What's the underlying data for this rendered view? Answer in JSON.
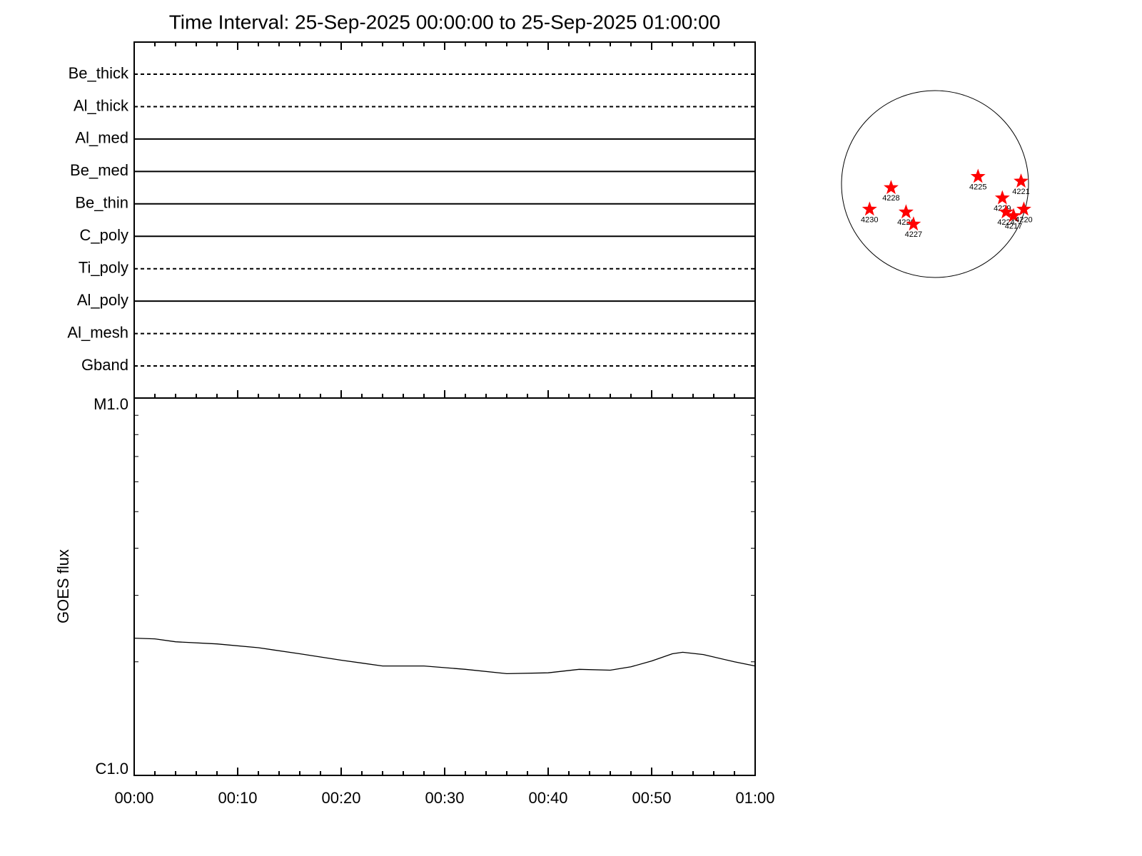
{
  "chart_data": [
    {
      "type": "timeline",
      "title": "Time Interval: 25-Sep-2025 00:00:00 to 25-Sep-2025 01:00:00",
      "categories": [
        "Be_thick",
        "Al_thick",
        "Al_med",
        "Be_med",
        "Be_thin",
        "C_poly",
        "Ti_poly",
        "Al_poly",
        "Al_mesh",
        "Gband"
      ],
      "styles": [
        "dashed",
        "dashed",
        "solid",
        "solid",
        "solid",
        "solid",
        "dashed",
        "solid",
        "dashed",
        "dashed"
      ],
      "xlim": [
        "00:00",
        "01:00"
      ],
      "xticks": [
        "00:00",
        "00:10",
        "00:20",
        "00:30",
        "00:40",
        "00:50",
        "01:00"
      ]
    },
    {
      "type": "line",
      "ylabel": "GOES flux",
      "log_scale": true,
      "color": "#000000",
      "x": [
        "00:00",
        "00:02",
        "00:04",
        "00:08",
        "00:12",
        "00:16",
        "00:20",
        "00:24",
        "00:28",
        "00:32",
        "00:36",
        "00:40",
        "00:43",
        "00:46",
        "00:48",
        "00:50",
        "00:52",
        "00:53",
        "00:55",
        "00:58",
        "01:00"
      ],
      "values": [
        2.31e-06,
        2.3e-06,
        2.26e-06,
        2.23e-06,
        2.18e-06,
        2.1e-06,
        2.02e-06,
        1.95e-06,
        1.95e-06,
        1.91e-06,
        1.86e-06,
        1.87e-06,
        1.91e-06,
        1.9e-06,
        1.94e-06,
        2.01e-06,
        2.1e-06,
        2.12e-06,
        2.09e-06,
        2e-06,
        1.95e-06
      ],
      "xlim": [
        "00:00",
        "01:00"
      ],
      "xticks": [
        "00:00",
        "00:10",
        "00:20",
        "00:30",
        "00:40",
        "00:50",
        "01:00"
      ],
      "ylim": [
        1e-06,
        1e-05
      ],
      "yticks": [
        {
          "value": 1e-06,
          "label": "C1.0"
        },
        {
          "value": 1e-05,
          "label": "M1.0"
        }
      ]
    },
    {
      "type": "disk",
      "color": "#ff0000",
      "regions": [
        {
          "label": "4228",
          "x": -0.47,
          "y": -0.04
        },
        {
          "label": "4230",
          "x": -0.7,
          "y": -0.27
        },
        {
          "label": "4226",
          "x": -0.31,
          "y": -0.3
        },
        {
          "label": "4227",
          "x": -0.23,
          "y": -0.43
        },
        {
          "label": "4225",
          "x": 0.46,
          "y": 0.08
        },
        {
          "label": "4221",
          "x": 0.92,
          "y": 0.03
        },
        {
          "label": "4229",
          "x": 0.72,
          "y": -0.15
        },
        {
          "label": "4224",
          "x": 0.76,
          "y": -0.3
        },
        {
          "label": "4217",
          "x": 0.84,
          "y": -0.34
        },
        {
          "label": "4220",
          "x": 0.95,
          "y": -0.27
        }
      ]
    }
  ]
}
